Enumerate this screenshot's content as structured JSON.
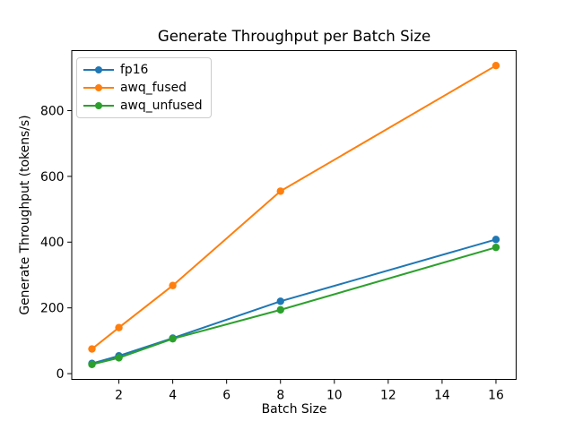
{
  "chart_data": {
    "type": "line",
    "title": "Generate Throughput per Batch Size",
    "xlabel": "Batch Size",
    "ylabel": "Generate Throughput (tokens/s)",
    "x": [
      1,
      2,
      4,
      8,
      16
    ],
    "series": [
      {
        "name": "fp16",
        "color": "#1f77b4",
        "values": [
          31,
          54,
          108,
          220,
          408
        ]
      },
      {
        "name": "awq_fused",
        "color": "#ff7f0e",
        "values": [
          75,
          140,
          268,
          555,
          937
        ]
      },
      {
        "name": "awq_unfused",
        "color": "#2ca02c",
        "values": [
          28,
          48,
          106,
          194,
          384
        ]
      }
    ],
    "xlim": [
      0.25,
      16.75
    ],
    "ylim": [
      -17.5,
      982.5
    ],
    "xticks": [
      2,
      4,
      6,
      8,
      10,
      12,
      14,
      16
    ],
    "yticks": [
      0,
      200,
      400,
      600,
      800
    ],
    "grid": false,
    "marker": "circle",
    "legend_position": "upper left",
    "axis_color": "#000000",
    "background_color": "#ffffff"
  }
}
